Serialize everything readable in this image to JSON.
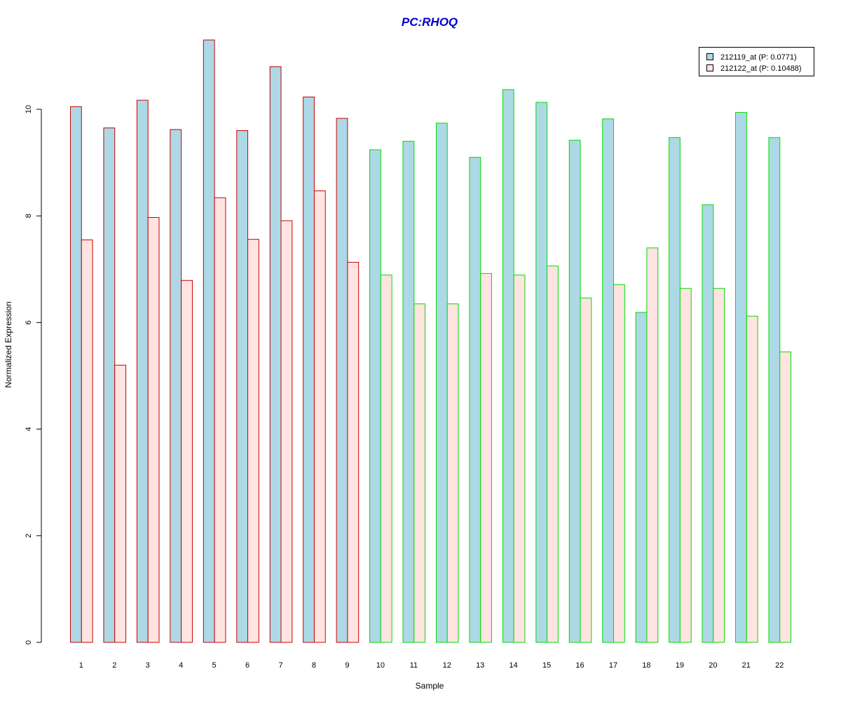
{
  "chart_data": {
    "type": "bar",
    "title": "PC:RHOQ",
    "xlabel": "Sample",
    "ylabel": "Normalized Expression",
    "ylim": [
      0,
      11.5
    ],
    "yticks": [
      0,
      2,
      4,
      6,
      8,
      10
    ],
    "categories": [
      "1",
      "2",
      "3",
      "4",
      "5",
      "6",
      "7",
      "8",
      "9",
      "10",
      "11",
      "12",
      "13",
      "14",
      "15",
      "16",
      "17",
      "18",
      "19",
      "20",
      "21",
      "22"
    ],
    "series": [
      {
        "name": "212119_at (P: 0.0771)",
        "fill": "#add8e6",
        "values": [
          10.05,
          9.65,
          10.17,
          9.62,
          11.3,
          9.6,
          10.8,
          10.23,
          9.83,
          9.24,
          9.4,
          9.74,
          9.1,
          10.37,
          10.13,
          9.42,
          9.82,
          6.19,
          9.47,
          8.21,
          9.94,
          9.47
        ]
      },
      {
        "name": "212122_at (P: 0.10488)",
        "fill": "#ffe4e1",
        "values": [
          7.55,
          5.2,
          7.97,
          6.79,
          8.34,
          7.56,
          7.91,
          8.47,
          7.13,
          6.89,
          6.35,
          6.35,
          6.92,
          6.89,
          7.06,
          6.46,
          6.71,
          7.4,
          6.64,
          6.64,
          6.12,
          5.45
        ]
      }
    ],
    "group_border_colors": [
      "#cc0000",
      "#cc0000",
      "#cc0000",
      "#cc0000",
      "#cc0000",
      "#cc0000",
      "#cc0000",
      "#cc0000",
      "#cc0000",
      "#00dd00",
      "#00dd00",
      "#00dd00",
      "#00dd00",
      "#00dd00",
      "#00dd00",
      "#00dd00",
      "#00dd00",
      "#00dd00",
      "#00dd00",
      "#00dd00",
      "#00dd00",
      "#00dd00"
    ],
    "title_color": "#0000cc",
    "grid": false,
    "legend_position": "top-right"
  }
}
